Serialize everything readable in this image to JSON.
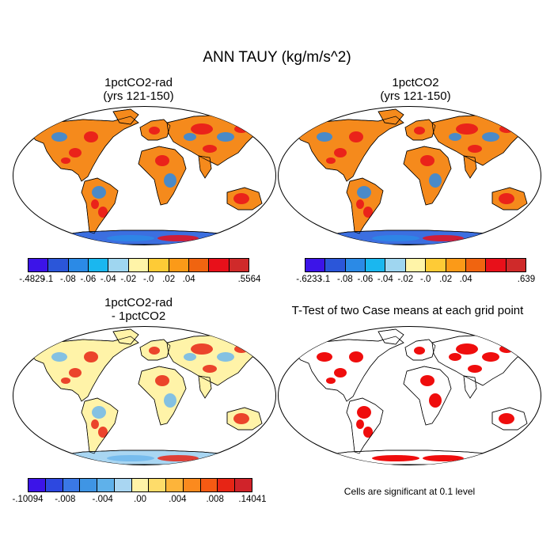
{
  "figure": {
    "title": "ANN TAUY (kg/m/s^2)"
  },
  "panels": [
    {
      "id": "p1",
      "title_line1": "1pctCO2-rad",
      "title_line2": "(yrs 121-150)",
      "colorbar": {
        "colors": [
          "#3c14e8",
          "#2b56d9",
          "#2b8ae6",
          "#1ab7ef",
          "#9fd6f0",
          "#fff4a8",
          "#fecb36",
          "#fb9a18",
          "#f06410",
          "#e8101a",
          "#cf2a2a"
        ],
        "labels": [
          "-.4829",
          "-.1",
          "-.08",
          "-.06",
          "-.04",
          "-.02",
          "-.0",
          ".02",
          ".04",
          ".5564"
        ]
      }
    },
    {
      "id": "p2",
      "title_line1": "1pctCO2",
      "title_line2": "(yrs 121-150)",
      "colorbar": {
        "colors": [
          "#3c14e8",
          "#2b56d9",
          "#2b8ae6",
          "#1ab7ef",
          "#9fd6f0",
          "#fff4a8",
          "#fecb36",
          "#fb9a18",
          "#f06410",
          "#e8101a",
          "#cf2a2a"
        ],
        "labels": [
          "-.6233",
          "-.1",
          "-.08",
          "-.06",
          "-.04",
          "-.02",
          "-.0",
          ".02",
          ".04",
          ".639"
        ]
      }
    },
    {
      "id": "p3",
      "title_line1": "1pctCO2-rad",
      "title_line2": "- 1pctCO2",
      "colorbar": {
        "colors": [
          "#3c14e8",
          "#2d48e0",
          "#3a78e6",
          "#3f95e4",
          "#5fb1ea",
          "#a9d6f2",
          "#fff3a8",
          "#fedc6a",
          "#fdb43a",
          "#fb8a1e",
          "#f55a13",
          "#e72515",
          "#d0232a"
        ],
        "labels": [
          "-.10094",
          "-.008",
          "-.004",
          ".00",
          ".004",
          ".008",
          ".14041"
        ]
      }
    },
    {
      "id": "p4",
      "title": "T-Test of two Case means at each grid point",
      "note": "Cells are significant at 0.1 level"
    }
  ],
  "map_style": {
    "p1": {
      "fill": "#f58a1c",
      "accent": "#e8101a",
      "cool": "#2b8ae6",
      "ant": "#3c6fe0"
    },
    "p2": {
      "fill": "#f58a1c",
      "accent": "#e8101a",
      "cool": "#2b8ae6",
      "ant": "#3c6fe0"
    },
    "p3": {
      "fill": "#fff3a8",
      "accent": "#e72515",
      "cool": "#6fb7ec",
      "ant": "#a9d6f2"
    },
    "p4": {
      "fill": "#ffffff",
      "accent": "#ee0000",
      "cool": "#ee0000",
      "ant": "#ffffff"
    }
  }
}
